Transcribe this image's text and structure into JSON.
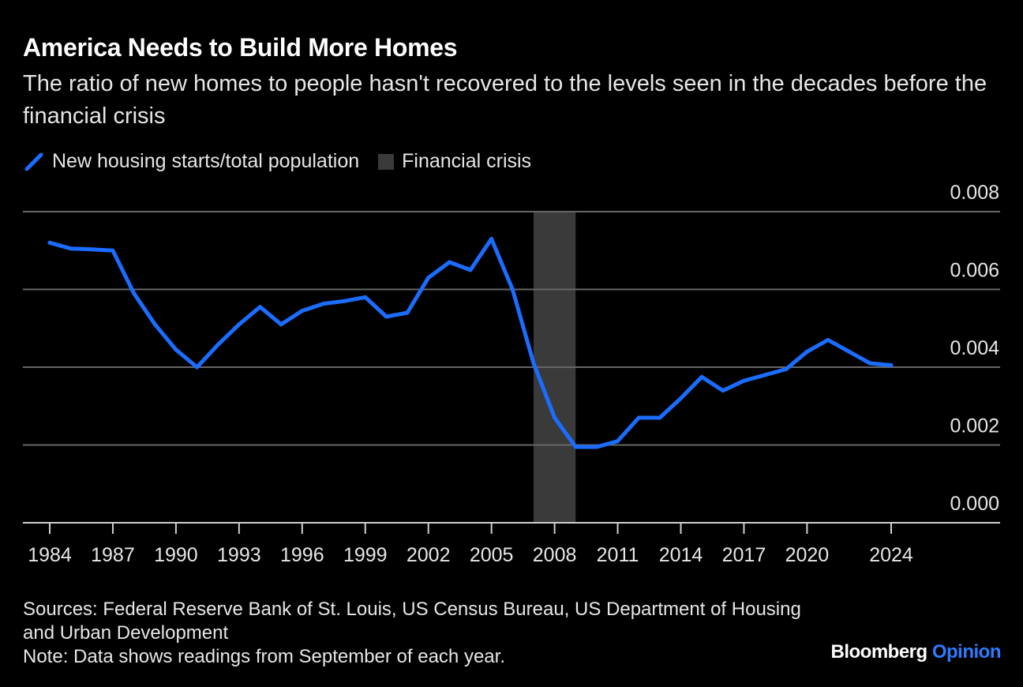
{
  "header": {
    "title": "America Needs to Build More Homes",
    "subtitle": "The ratio of new homes to people hasn't recovered to the levels seen in the decades before the financial crisis"
  },
  "legend": {
    "series_label": "New housing starts/total population",
    "shade_label": "Financial crisis"
  },
  "footer": {
    "sources": "Sources: Federal Reserve Bank of St. Louis, US Census Bureau, US Department of Housing and Urban Development",
    "note": "Note: Data shows readings from September of each year.",
    "brand_main": "Bloomberg",
    "brand_accent": "Opinion"
  },
  "colors": {
    "background": "#000000",
    "line": "#1a6dff",
    "grid": "#666666",
    "shade": "#3a3a3a",
    "text": "#e6e6e6"
  },
  "chart_data": {
    "type": "line",
    "title": "America Needs to Build More Homes",
    "xlabel": "",
    "ylabel": "",
    "xlim": [
      1983,
      2027
    ],
    "ylim": [
      0,
      0.008
    ],
    "yticks": [
      0.0,
      0.002,
      0.004,
      0.006,
      0.008
    ],
    "ytick_labels": [
      "0.000",
      "0.002",
      "0.004",
      "0.006",
      "0.008"
    ],
    "xticks": [
      1984,
      1987,
      1990,
      1993,
      1996,
      1999,
      2002,
      2005,
      2008,
      2011,
      2014,
      2017,
      2020,
      2024
    ],
    "xtick_labels": [
      "1984",
      "1987",
      "1990",
      "1993",
      "1996",
      "1999",
      "2002",
      "2005",
      "2008",
      "2011",
      "2014",
      "2017",
      "2020",
      "2024"
    ],
    "grid": true,
    "shaded_regions": [
      {
        "name": "Financial crisis",
        "x_start": 2007,
        "x_end": 2009
      }
    ],
    "series": [
      {
        "name": "New housing starts/total population",
        "x": [
          1984,
          1985,
          1986,
          1987,
          1988,
          1989,
          1990,
          1991,
          1992,
          1993,
          1994,
          1995,
          1996,
          1997,
          1998,
          1999,
          2000,
          2001,
          2002,
          2003,
          2004,
          2005,
          2006,
          2007,
          2008,
          2009,
          2010,
          2011,
          2012,
          2013,
          2014,
          2015,
          2016,
          2017,
          2018,
          2019,
          2020,
          2021,
          2022,
          2023,
          2024
        ],
        "values": [
          0.0072,
          0.00705,
          0.00703,
          0.007,
          0.0059,
          0.0051,
          0.00445,
          0.004,
          0.00458,
          0.0051,
          0.00555,
          0.0051,
          0.00545,
          0.00563,
          0.0057,
          0.0058,
          0.0053,
          0.0054,
          0.0063,
          0.0067,
          0.0065,
          0.0073,
          0.006,
          0.0041,
          0.0027,
          0.00195,
          0.00195,
          0.0021,
          0.0027,
          0.0027,
          0.0032,
          0.00375,
          0.0034,
          0.00365,
          0.0038,
          0.00395,
          0.0044,
          0.0047,
          0.0044,
          0.0041,
          0.00405
        ]
      }
    ]
  }
}
